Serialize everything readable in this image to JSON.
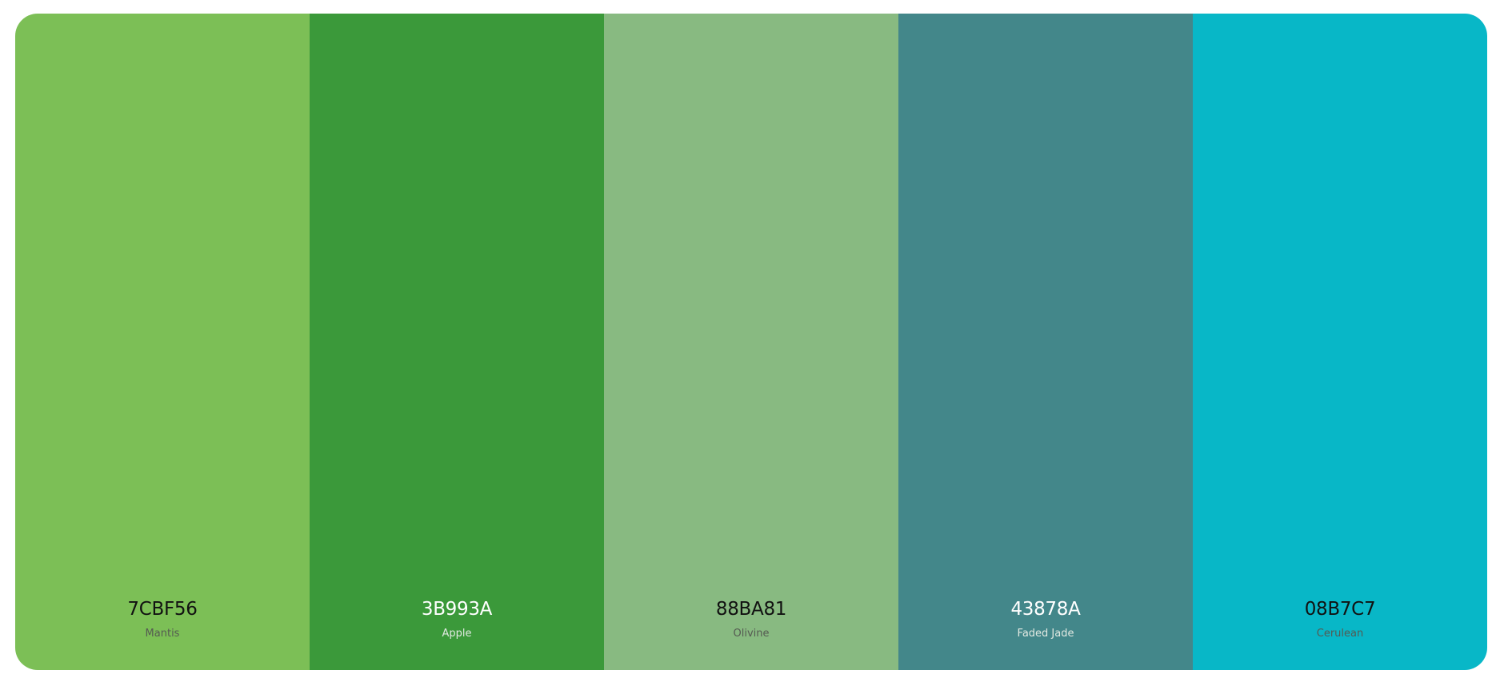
{
  "palette": {
    "swatches": [
      {
        "hex": "7CBF56",
        "name": "Mantis",
        "color": "#7CBF56",
        "text_theme": "dark"
      },
      {
        "hex": "3B993A",
        "name": "Apple",
        "color": "#3B993A",
        "text_theme": "light"
      },
      {
        "hex": "88BA81",
        "name": "Olivine",
        "color": "#88BA81",
        "text_theme": "dark"
      },
      {
        "hex": "43878A",
        "name": "Faded Jade",
        "color": "#43878A",
        "text_theme": "light"
      },
      {
        "hex": "08B7C7",
        "name": "Cerulean",
        "color": "#08B7C7",
        "text_theme": "dark"
      }
    ]
  }
}
